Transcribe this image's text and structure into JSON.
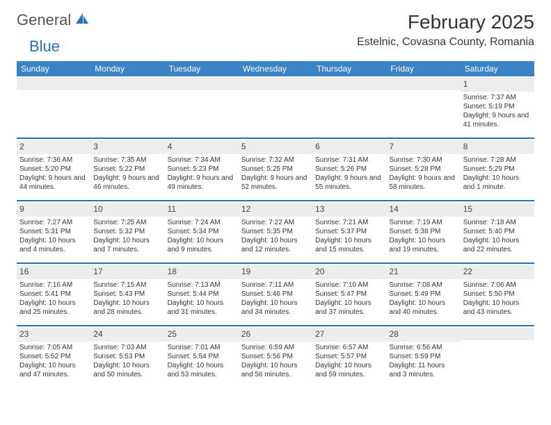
{
  "logo": {
    "part1": "General",
    "part2": "Blue"
  },
  "title": "February 2025",
  "location": "Estelnic, Covasna County, Romania",
  "colors": {
    "header_bg": "#3a83c4",
    "band_bg": "#ededed",
    "row_border": "#2a6db0",
    "logo_accent": "#2a6db0"
  },
  "day_headers": [
    "Sunday",
    "Monday",
    "Tuesday",
    "Wednesday",
    "Thursday",
    "Friday",
    "Saturday"
  ],
  "weeks": [
    [
      {
        "n": "",
        "sr": "",
        "ss": "",
        "dl": ""
      },
      {
        "n": "",
        "sr": "",
        "ss": "",
        "dl": ""
      },
      {
        "n": "",
        "sr": "",
        "ss": "",
        "dl": ""
      },
      {
        "n": "",
        "sr": "",
        "ss": "",
        "dl": ""
      },
      {
        "n": "",
        "sr": "",
        "ss": "",
        "dl": ""
      },
      {
        "n": "",
        "sr": "",
        "ss": "",
        "dl": ""
      },
      {
        "n": "1",
        "sr": "Sunrise: 7:37 AM",
        "ss": "Sunset: 5:19 PM",
        "dl": "Daylight: 9 hours and 41 minutes."
      }
    ],
    [
      {
        "n": "2",
        "sr": "Sunrise: 7:36 AM",
        "ss": "Sunset: 5:20 PM",
        "dl": "Daylight: 9 hours and 44 minutes."
      },
      {
        "n": "3",
        "sr": "Sunrise: 7:35 AM",
        "ss": "Sunset: 5:22 PM",
        "dl": "Daylight: 9 hours and 46 minutes."
      },
      {
        "n": "4",
        "sr": "Sunrise: 7:34 AM",
        "ss": "Sunset: 5:23 PM",
        "dl": "Daylight: 9 hours and 49 minutes."
      },
      {
        "n": "5",
        "sr": "Sunrise: 7:32 AM",
        "ss": "Sunset: 5:25 PM",
        "dl": "Daylight: 9 hours and 52 minutes."
      },
      {
        "n": "6",
        "sr": "Sunrise: 7:31 AM",
        "ss": "Sunset: 5:26 PM",
        "dl": "Daylight: 9 hours and 55 minutes."
      },
      {
        "n": "7",
        "sr": "Sunrise: 7:30 AM",
        "ss": "Sunset: 5:28 PM",
        "dl": "Daylight: 9 hours and 58 minutes."
      },
      {
        "n": "8",
        "sr": "Sunrise: 7:28 AM",
        "ss": "Sunset: 5:29 PM",
        "dl": "Daylight: 10 hours and 1 minute."
      }
    ],
    [
      {
        "n": "9",
        "sr": "Sunrise: 7:27 AM",
        "ss": "Sunset: 5:31 PM",
        "dl": "Daylight: 10 hours and 4 minutes."
      },
      {
        "n": "10",
        "sr": "Sunrise: 7:25 AM",
        "ss": "Sunset: 5:32 PM",
        "dl": "Daylight: 10 hours and 7 minutes."
      },
      {
        "n": "11",
        "sr": "Sunrise: 7:24 AM",
        "ss": "Sunset: 5:34 PM",
        "dl": "Daylight: 10 hours and 9 minutes."
      },
      {
        "n": "12",
        "sr": "Sunrise: 7:22 AM",
        "ss": "Sunset: 5:35 PM",
        "dl": "Daylight: 10 hours and 12 minutes."
      },
      {
        "n": "13",
        "sr": "Sunrise: 7:21 AM",
        "ss": "Sunset: 5:37 PM",
        "dl": "Daylight: 10 hours and 15 minutes."
      },
      {
        "n": "14",
        "sr": "Sunrise: 7:19 AM",
        "ss": "Sunset: 5:38 PM",
        "dl": "Daylight: 10 hours and 19 minutes."
      },
      {
        "n": "15",
        "sr": "Sunrise: 7:18 AM",
        "ss": "Sunset: 5:40 PM",
        "dl": "Daylight: 10 hours and 22 minutes."
      }
    ],
    [
      {
        "n": "16",
        "sr": "Sunrise: 7:16 AM",
        "ss": "Sunset: 5:41 PM",
        "dl": "Daylight: 10 hours and 25 minutes."
      },
      {
        "n": "17",
        "sr": "Sunrise: 7:15 AM",
        "ss": "Sunset: 5:43 PM",
        "dl": "Daylight: 10 hours and 28 minutes."
      },
      {
        "n": "18",
        "sr": "Sunrise: 7:13 AM",
        "ss": "Sunset: 5:44 PM",
        "dl": "Daylight: 10 hours and 31 minutes."
      },
      {
        "n": "19",
        "sr": "Sunrise: 7:11 AM",
        "ss": "Sunset: 5:46 PM",
        "dl": "Daylight: 10 hours and 34 minutes."
      },
      {
        "n": "20",
        "sr": "Sunrise: 7:10 AM",
        "ss": "Sunset: 5:47 PM",
        "dl": "Daylight: 10 hours and 37 minutes."
      },
      {
        "n": "21",
        "sr": "Sunrise: 7:08 AM",
        "ss": "Sunset: 5:49 PM",
        "dl": "Daylight: 10 hours and 40 minutes."
      },
      {
        "n": "22",
        "sr": "Sunrise: 7:06 AM",
        "ss": "Sunset: 5:50 PM",
        "dl": "Daylight: 10 hours and 43 minutes."
      }
    ],
    [
      {
        "n": "23",
        "sr": "Sunrise: 7:05 AM",
        "ss": "Sunset: 5:52 PM",
        "dl": "Daylight: 10 hours and 47 minutes."
      },
      {
        "n": "24",
        "sr": "Sunrise: 7:03 AM",
        "ss": "Sunset: 5:53 PM",
        "dl": "Daylight: 10 hours and 50 minutes."
      },
      {
        "n": "25",
        "sr": "Sunrise: 7:01 AM",
        "ss": "Sunset: 5:54 PM",
        "dl": "Daylight: 10 hours and 53 minutes."
      },
      {
        "n": "26",
        "sr": "Sunrise: 6:59 AM",
        "ss": "Sunset: 5:56 PM",
        "dl": "Daylight: 10 hours and 56 minutes."
      },
      {
        "n": "27",
        "sr": "Sunrise: 6:57 AM",
        "ss": "Sunset: 5:57 PM",
        "dl": "Daylight: 10 hours and 59 minutes."
      },
      {
        "n": "28",
        "sr": "Sunrise: 6:56 AM",
        "ss": "Sunset: 5:59 PM",
        "dl": "Daylight: 11 hours and 3 minutes."
      },
      {
        "n": "",
        "sr": "",
        "ss": "",
        "dl": ""
      }
    ]
  ]
}
